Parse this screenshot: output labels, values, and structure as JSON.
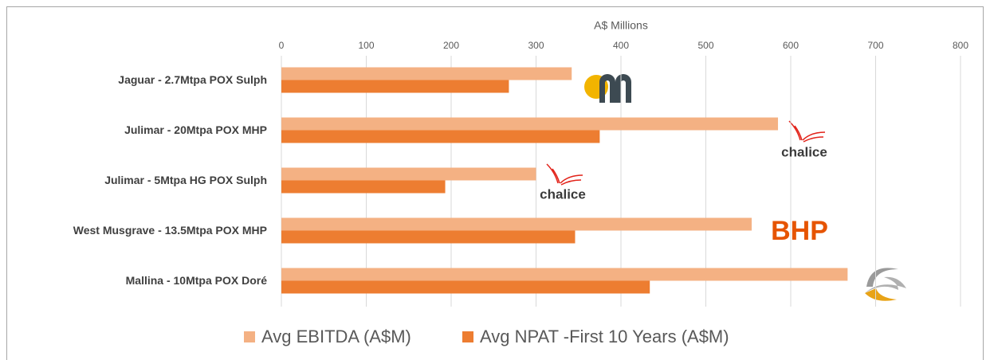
{
  "chart_data": {
    "type": "barh",
    "xlabel": "A$ Millions",
    "categories": [
      "Jaguar - 2.7Mtpa POX Sulph",
      "Julimar - 20Mtpa POX MHP",
      "Julimar - 5Mtpa HG POX Sulph",
      "West Musgrave - 13.5Mtpa POX MHP",
      "Mallina - 10Mtpa POX Doré"
    ],
    "series": [
      {
        "name": "Avg EBITDA (A$M)",
        "color": "#f4b183",
        "values": [
          342,
          585,
          300,
          554,
          667
        ]
      },
      {
        "name": "Avg NPAT -First 10 Years (A$M)",
        "color": "#ed7d31",
        "values": [
          268,
          375,
          193,
          346,
          434
        ]
      }
    ],
    "xlim": [
      0,
      800
    ],
    "xticks": [
      0,
      100,
      200,
      300,
      400,
      500,
      600,
      700,
      800
    ],
    "grid": true,
    "legend": "bottom",
    "annotations": [
      "chalice",
      "chalice",
      "BHP"
    ]
  }
}
